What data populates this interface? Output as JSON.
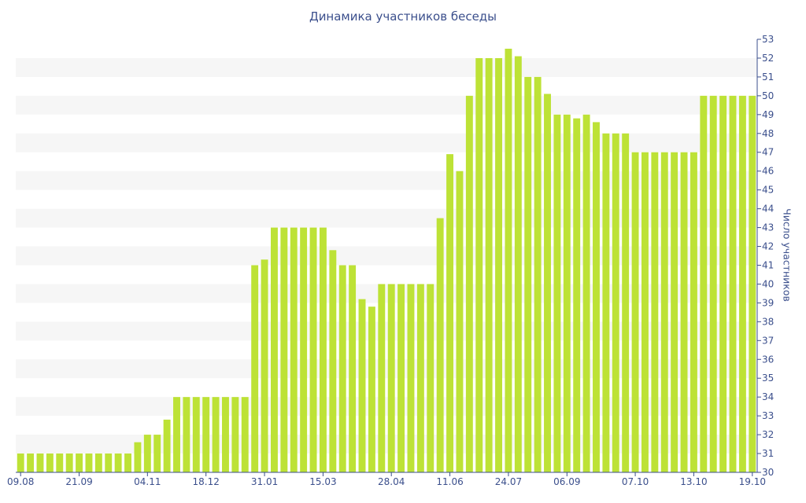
{
  "chart_data": {
    "type": "bar",
    "title": "Динамика участников беседы",
    "ylabel": "Число участников",
    "xlabel": "",
    "ylim": [
      30,
      53
    ],
    "yaxis_side": "right",
    "grid": "horizontal alternating bands",
    "bar_color": "#bde236",
    "band_color": "#f6f6f6",
    "text_color": "#3b4f8c",
    "x_tick_labels": [
      "09.08",
      "21.09",
      "04.11",
      "18.12",
      "31.01",
      "15.03",
      "28.04",
      "11.06",
      "24.07",
      "06.09",
      "07.10",
      "13.10",
      "19.10"
    ],
    "values": [
      31,
      31,
      31,
      31,
      31,
      31,
      31,
      31,
      31,
      31,
      31,
      31,
      31.6,
      32,
      32,
      32.8,
      34,
      34,
      34,
      34,
      34,
      34,
      34,
      34,
      41,
      41.3,
      43,
      43,
      43,
      43,
      43,
      43,
      41.8,
      41,
      41,
      39.2,
      38.8,
      40,
      40,
      40,
      40,
      40,
      40,
      43.5,
      46.9,
      46,
      50,
      52,
      52,
      52,
      52.5,
      52.1,
      51,
      51,
      50.1,
      49,
      49,
      48.8,
      49,
      48.6,
      48,
      48,
      48,
      47,
      47,
      47,
      47,
      47,
      47,
      47,
      50,
      50,
      50,
      50,
      50,
      50
    ]
  }
}
